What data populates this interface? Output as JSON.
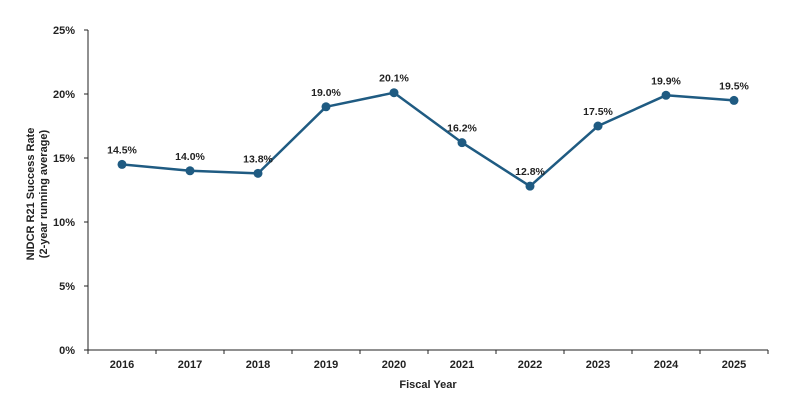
{
  "chart_data": {
    "type": "line",
    "x": [
      "2016",
      "2017",
      "2018",
      "2019",
      "2020",
      "2021",
      "2022",
      "2023",
      "2024",
      "2025"
    ],
    "series": [
      {
        "values": [
          14.5,
          14.0,
          13.8,
          19.0,
          20.1,
          16.2,
          12.8,
          17.5,
          19.9,
          19.5
        ]
      }
    ],
    "data_labels": [
      "14.5%",
      "14.0%",
      "13.8%",
      "19.0%",
      "20.1%",
      "16.2%",
      "12.8%",
      "17.5%",
      "19.9%",
      "19.5%"
    ],
    "yticks": [
      "0%",
      "5%",
      "10%",
      "15%",
      "20%",
      "25%"
    ],
    "ylim": [
      0,
      25
    ],
    "xlabel": "Fiscal Year",
    "ylabel_line1": "NIDCR R21 Success Rate",
    "ylabel_line2": "(2-year running average)",
    "grid": false,
    "legend": "none",
    "colors": {
      "line": "#1f5b82",
      "marker": "#1f5b82",
      "axis": "#222222"
    }
  }
}
